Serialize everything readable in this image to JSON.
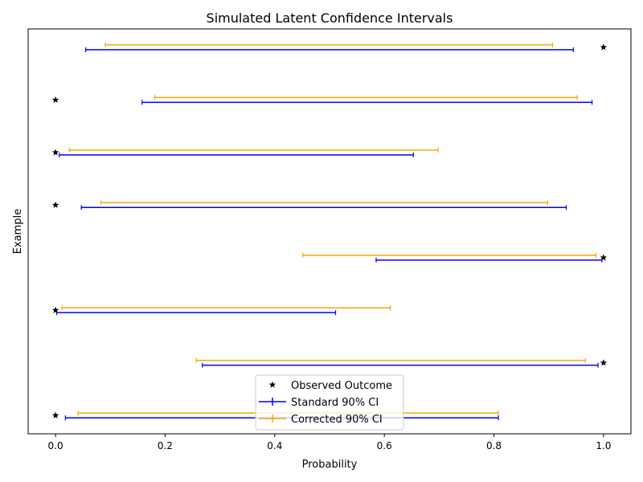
{
  "chart_data": {
    "type": "scatter",
    "title": "Simulated Latent Confidence Intervals",
    "xlabel": "Probability",
    "ylabel": "Example",
    "xlim": [
      -0.05,
      1.05
    ],
    "ylim": [
      -0.35,
      7.35
    ],
    "xticks": [
      0.0,
      0.2,
      0.4,
      0.6,
      0.8,
      1.0
    ],
    "xtick_labels": [
      "0.0",
      "0.2",
      "0.4",
      "0.6",
      "0.8",
      "1.0"
    ],
    "grid": false,
    "legend_position": "bottom-center",
    "examples": [
      0,
      1,
      2,
      3,
      4,
      5,
      6,
      7
    ],
    "observed_outcome": [
      0,
      1,
      0,
      1,
      0,
      0,
      0,
      1
    ],
    "standard_ci": [
      [
        0.018,
        0.808
      ],
      [
        0.268,
        0.99
      ],
      [
        0.002,
        0.511
      ],
      [
        0.585,
        0.997
      ],
      [
        0.047,
        0.932
      ],
      [
        0.007,
        0.653
      ],
      [
        0.158,
        0.979
      ],
      [
        0.055,
        0.945
      ]
    ],
    "corrected_ci": [
      [
        0.041,
        0.808
      ],
      [
        0.257,
        0.967
      ],
      [
        0.012,
        0.611
      ],
      [
        0.451,
        0.986
      ],
      [
        0.083,
        0.898
      ],
      [
        0.025,
        0.698
      ],
      [
        0.181,
        0.952
      ],
      [
        0.091,
        0.907
      ]
    ],
    "series": [
      {
        "name": "Observed Outcome",
        "color": "#000000",
        "marker": "star"
      },
      {
        "name": "Standard 90% CI",
        "color": "#0000ff",
        "marker": "vline"
      },
      {
        "name": "Corrected 90% CI",
        "color": "#ffa500",
        "marker": "vline"
      }
    ]
  }
}
